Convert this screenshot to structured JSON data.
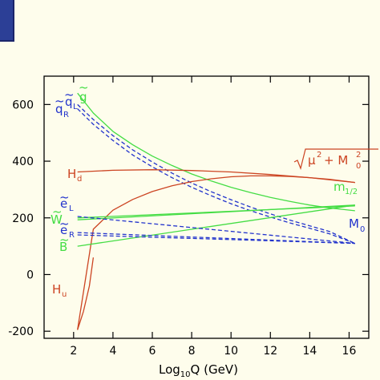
{
  "chart_data": {
    "type": "line",
    "xlabel": "Log",
    "xlabel_sub": "10",
    "xlabel_rest": "Q  (GeV)",
    "ylabel": "",
    "xlim": [
      0.5,
      17.0
    ],
    "ylim": [
      -225,
      700
    ],
    "xticks": [
      2,
      4,
      6,
      8,
      10,
      12,
      14,
      16
    ],
    "xtick_labels": [
      "2",
      "4",
      "6",
      "8",
      "10",
      "12",
      "14",
      "16"
    ],
    "yticks": [
      600,
      400,
      200,
      0,
      -200
    ],
    "ytick_labels": [
      "600",
      "400",
      "200",
      "0",
      "-200"
    ],
    "grid": false,
    "colors": {
      "green": "#44dd44",
      "blue": "#2233cc",
      "red": "#cc4422",
      "first_tick_label": "#2233cc"
    },
    "series": [
      {
        "name": "g~",
        "color": "#44dd44",
        "dash": false,
        "x": [
          2.2,
          3,
          4,
          5,
          6,
          7,
          8,
          9,
          10,
          11,
          12,
          13,
          14,
          15,
          16.3
        ],
        "y": [
          640,
          570,
          505,
          458,
          418,
          385,
          355,
          330,
          308,
          289,
          272,
          258,
          245,
          235,
          225
        ]
      },
      {
        "name": "q~L",
        "color": "#2233cc",
        "dash": true,
        "x": [
          2.2,
          3,
          4,
          5,
          6,
          7,
          8,
          9,
          10,
          11,
          12,
          13,
          14,
          15,
          16.3
        ],
        "y": [
          600,
          547,
          490,
          440,
          397,
          358,
          323,
          292,
          264,
          238,
          214,
          192,
          172,
          152,
          110
        ]
      },
      {
        "name": "q~R",
        "color": "#2233cc",
        "dash": true,
        "x": [
          2.2,
          3,
          4,
          5,
          6,
          7,
          8,
          9,
          10,
          11,
          12,
          13,
          14,
          15,
          16.3
        ],
        "y": [
          585,
          530,
          473,
          422,
          380,
          342,
          308,
          278,
          250,
          225,
          203,
          182,
          163,
          144,
          110
        ]
      },
      {
        "name": "H_d",
        "color": "#cc4422",
        "dash": false,
        "x": [
          2.2,
          4,
          6,
          8,
          10,
          12,
          14,
          16.3
        ],
        "y": [
          362,
          368,
          370,
          367,
          362,
          353,
          342,
          325
        ]
      },
      {
        "name": "sqrt(mu^2+M0^2)",
        "color": "#cc4422",
        "dash": false,
        "x": [
          2.2,
          3,
          4,
          5,
          6,
          7,
          8,
          9,
          10,
          11,
          12,
          13,
          14,
          15,
          16.3
        ],
        "y": [
          -195,
          160,
          227,
          265,
          293,
          313,
          328,
          338,
          345,
          348,
          348,
          346,
          342,
          336,
          325
        ]
      },
      {
        "name": "H_u",
        "color": "#cc4422",
        "dash": false,
        "x": [
          2.2,
          2.5,
          2.8,
          3.0
        ],
        "y": [
          -195,
          -130,
          -40,
          60
        ]
      },
      {
        "name": "m_1/2 (e~L)",
        "color": "#44dd44",
        "dash": false,
        "x": [
          2.2,
          16.3
        ],
        "y": [
          200,
          242
        ]
      },
      {
        "name": "m_1/2 (W~)",
        "color": "#44dd44",
        "dash": false,
        "x": [
          2.2,
          16.3
        ],
        "y": [
          193,
          245
        ]
      },
      {
        "name": "m_1/2 (B~)",
        "color": "#44dd44",
        "dash": false,
        "x": [
          2.2,
          16.3
        ],
        "y": [
          100,
          245
        ]
      },
      {
        "name": "e~L",
        "color": "#2233cc",
        "dash": true,
        "x": [
          2.2,
          16.3
        ],
        "y": [
          205,
          110
        ]
      },
      {
        "name": "e~R",
        "color": "#2233cc",
        "dash": true,
        "x": [
          2.2,
          16.3
        ],
        "y": [
          148,
          110
        ]
      },
      {
        "name": "M_0 (e~R)",
        "color": "#2233cc",
        "dash": true,
        "x": [
          2.2,
          16.3
        ],
        "y": [
          140,
          110
        ]
      }
    ],
    "labels": {
      "g": "g",
      "qL": "q",
      "qR": "q",
      "qL_sub": "L",
      "qR_sub": "R",
      "Hd": "H",
      "Hd_sub": "d",
      "Hu": "H",
      "Hu_sub": "u",
      "eL": "e",
      "eL_sub": "L",
      "eR": "e",
      "eR_sub": "R",
      "W": "W",
      "B": "B",
      "m": "m",
      "m_sub": "1/2",
      "M": "M",
      "M_sub": "0",
      "mu": "μ",
      "plus": "+ M",
      "sup2": "2",
      "sub0": "0",
      "tilde": "~"
    }
  }
}
